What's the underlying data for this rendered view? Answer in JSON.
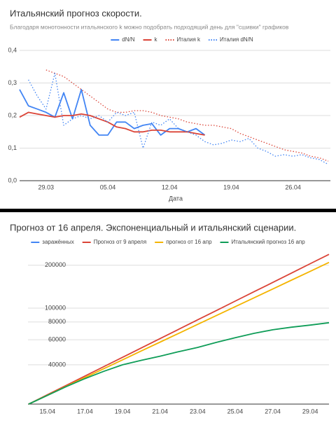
{
  "chart_data": [
    {
      "type": "line",
      "title": "Итальянский прогноз скорости.",
      "subtitle": "Благодаря монотонности итальянского k можно подобрать подходящий день для \"сшивки\" графиков",
      "x_label": "Дата",
      "categories": [
        null,
        null,
        null,
        "29.03",
        null,
        null,
        null,
        null,
        null,
        null,
        "05.04",
        null,
        null,
        null,
        null,
        null,
        null,
        "12.04",
        null,
        null,
        null,
        null,
        null,
        null,
        "19.04",
        null,
        null,
        null,
        null,
        null,
        null,
        "26.04",
        null,
        null,
        null,
        null
      ],
      "series": [
        {
          "name": "dN/N",
          "color": "#4285f4",
          "style": "solid",
          "values": [
            0.28,
            0.23,
            0.22,
            0.21,
            0.195,
            0.27,
            0.19,
            0.28,
            0.17,
            0.14,
            0.14,
            0.18,
            0.18,
            0.16,
            0.17,
            0.175,
            0.14,
            0.16,
            0.16,
            0.15,
            0.16,
            0.14,
            null,
            null,
            null,
            null,
            null,
            null,
            null,
            null,
            null,
            null,
            null,
            null,
            null,
            null
          ]
        },
        {
          "name": "k",
          "color": "#db4437",
          "style": "solid",
          "values": [
            0.195,
            0.21,
            0.205,
            0.2,
            0.195,
            0.2,
            0.2,
            0.205,
            0.2,
            0.19,
            0.18,
            0.165,
            0.16,
            0.15,
            0.15,
            0.155,
            0.155,
            0.15,
            0.15,
            0.15,
            0.145,
            0.14,
            null,
            null,
            null,
            null,
            null,
            null,
            null,
            null,
            null,
            null,
            null,
            null,
            null,
            null
          ]
        },
        {
          "name": "Италия k",
          "color": "#db4437",
          "style": "dotted",
          "values": [
            null,
            null,
            null,
            0.34,
            0.33,
            0.32,
            0.3,
            0.28,
            0.26,
            0.24,
            0.22,
            0.21,
            0.21,
            0.215,
            0.215,
            0.21,
            0.2,
            0.195,
            0.19,
            0.18,
            0.175,
            0.17,
            0.17,
            0.165,
            0.16,
            0.145,
            0.135,
            0.125,
            0.115,
            0.105,
            0.095,
            0.09,
            0.085,
            0.075,
            0.07,
            0.06
          ]
        },
        {
          "name": "Италия dN/N",
          "color": "#4285f4",
          "style": "dotted",
          "values": [
            null,
            0.31,
            0.26,
            0.22,
            0.33,
            0.17,
            0.19,
            0.2,
            0.19,
            0.2,
            0.18,
            0.21,
            0.2,
            0.21,
            0.1,
            0.18,
            0.17,
            0.19,
            0.16,
            0.15,
            0.14,
            0.12,
            0.11,
            0.115,
            0.125,
            0.12,
            0.13,
            0.1,
            0.09,
            0.075,
            0.08,
            0.075,
            0.08,
            0.07,
            0.065,
            0.05
          ]
        }
      ],
      "ylim": [
        0,
        0.4
      ],
      "yticks": [
        {
          "value": 0,
          "label": "0,0"
        },
        {
          "value": 0.1,
          "label": "0,1"
        },
        {
          "value": 0.2,
          "label": "0,2"
        },
        {
          "value": 0.3,
          "label": "0,3"
        },
        {
          "value": 0.4,
          "label": "0,4"
        }
      ],
      "grid": true,
      "log_y": false,
      "legend": "top"
    },
    {
      "type": "line",
      "title": "Прогноз от 16 апреля. Экспоненциальный и итальянский сценарии.",
      "categories": [
        null,
        "15.04",
        null,
        "17.04",
        null,
        "19.04",
        null,
        "21.04",
        null,
        "23.04",
        null,
        "25.04",
        null,
        "27.04",
        null,
        "29.04",
        null
      ],
      "series": [
        {
          "name": "заражённых",
          "color": "#4285f4",
          "style": "solid",
          "values": [
            21200,
            24500,
            null,
            null,
            null,
            null,
            null,
            null,
            null,
            null,
            null,
            null,
            null,
            null,
            null,
            null,
            null
          ]
        },
        {
          "name": "Прогноз от 9 апреля",
          "color": "#db4437",
          "style": "solid",
          "values": [
            21200,
            24660,
            28690,
            33380,
            38840,
            45180,
            52560,
            61150,
            71140,
            82770,
            96290,
            112000,
            130300,
            151600,
            176400,
            205200,
            238700
          ]
        },
        {
          "name": "прогноз от 16 апр",
          "color": "#f4b400",
          "style": "solid",
          "values": [
            21200,
            24460,
            28230,
            32580,
            37590,
            43370,
            50050,
            57760,
            66640,
            76900,
            88740,
            102400,
            118100,
            136300,
            157300,
            181500,
            209500
          ]
        },
        {
          "name": "Итальянский прогноз 16 апр",
          "color": "#0f9d58",
          "style": "solid",
          "values": [
            21200,
            24400,
            28100,
            32000,
            36000,
            40000,
            43000,
            46000,
            49500,
            53000,
            57500,
            62000,
            66500,
            70500,
            73500,
            76000,
            79000
          ]
        }
      ],
      "ylim": [
        21200,
        256000
      ],
      "yticks": [
        40000,
        60000,
        80000,
        100000,
        200000
      ],
      "grid": true,
      "log_y": true,
      "legend": "top"
    }
  ]
}
